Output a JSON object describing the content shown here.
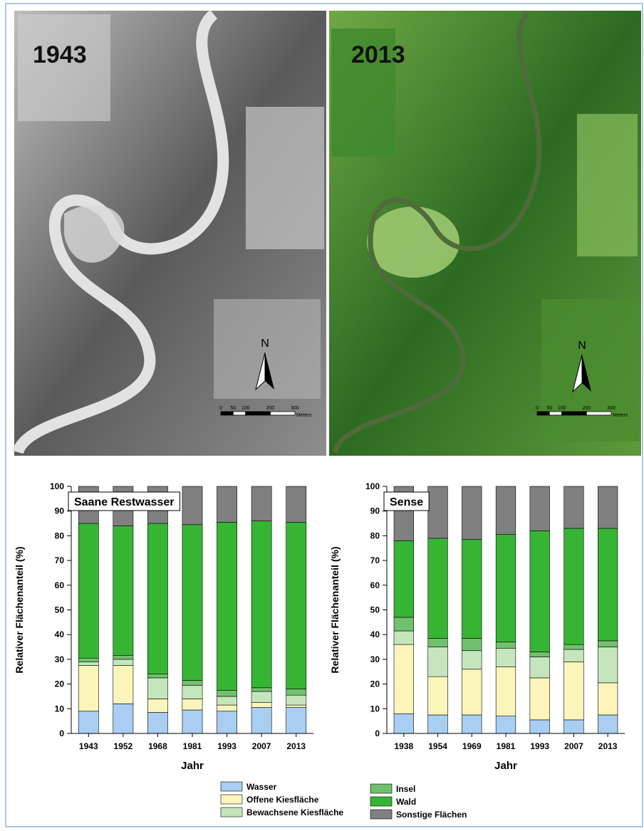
{
  "photos": [
    {
      "label": "1943",
      "north": "N",
      "scale_labels": [
        "0",
        "50",
        "100",
        "200",
        "300"
      ],
      "scale_unit": "Meters"
    },
    {
      "label": "2013",
      "north": "N",
      "scale_labels": [
        "0",
        "50",
        "100",
        "200",
        "300"
      ],
      "scale_unit": "Meters"
    }
  ],
  "chart_data": [
    {
      "type": "stacked_bar",
      "title": "Saane Restwasser",
      "x_label": "Jahr",
      "y_label": "Relativer Flächenanteil (%)",
      "categories": [
        "1943",
        "1952",
        "1968",
        "1981",
        "1993",
        "2007",
        "2013"
      ],
      "ylim": [
        0,
        100
      ],
      "yticks": [
        0,
        10,
        20,
        30,
        40,
        50,
        60,
        70,
        80,
        90,
        100
      ],
      "series": [
        {
          "name": "Wasser",
          "color": "#a9cef1",
          "values": [
            9,
            12,
            8.5,
            9.5,
            9,
            10.5,
            10.5
          ]
        },
        {
          "name": "Offene Kiesfläche",
          "color": "#fbf5ba",
          "values": [
            18.5,
            15.5,
            5.5,
            4.5,
            2.5,
            2,
            1
          ]
        },
        {
          "name": "Bewachsene Kiesfläche",
          "color": "#c5e6bd",
          "values": [
            1.5,
            2.5,
            8.5,
            5.5,
            3.5,
            4.5,
            4
          ]
        },
        {
          "name": "Insel",
          "color": "#71c06d",
          "values": [
            1.5,
            1.5,
            1.5,
            2,
            2.5,
            1.5,
            2.5
          ]
        },
        {
          "name": "Wald",
          "color": "#36b534",
          "values": [
            54.5,
            52.5,
            61,
            63,
            68,
            67.5,
            67.5
          ]
        },
        {
          "name": "Sonstige Flächen",
          "color": "#808080",
          "values": [
            15,
            16,
            15,
            15.5,
            14.5,
            14,
            14.5
          ]
        }
      ]
    },
    {
      "type": "stacked_bar",
      "title": "Sense",
      "x_label": "Jahr",
      "y_label": "Relativer Flächenanteil (%)",
      "categories": [
        "1938",
        "1954",
        "1969",
        "1981",
        "1993",
        "2007",
        "2013"
      ],
      "ylim": [
        0,
        100
      ],
      "yticks": [
        0,
        10,
        20,
        30,
        40,
        50,
        60,
        70,
        80,
        90,
        100
      ],
      "series": [
        {
          "name": "Wasser",
          "color": "#a9cef1",
          "values": [
            8,
            7.5,
            7.5,
            7,
            5.5,
            5.5,
            7.5
          ]
        },
        {
          "name": "Offene Kiesfläche",
          "color": "#fbf5ba",
          "values": [
            28,
            15.5,
            18.5,
            20,
            17,
            23.5,
            13
          ]
        },
        {
          "name": "Bewachsene Kiesfläche",
          "color": "#c5e6bd",
          "values": [
            5.5,
            12,
            7.5,
            7.5,
            8.5,
            5,
            14.5
          ]
        },
        {
          "name": "Insel",
          "color": "#71c06d",
          "values": [
            5.5,
            3.5,
            5,
            2.5,
            2,
            2,
            2.5
          ]
        },
        {
          "name": "Wald",
          "color": "#36b534",
          "values": [
            31,
            40.5,
            40,
            43.5,
            49,
            47,
            45.5
          ]
        },
        {
          "name": "Sonstige Flächen",
          "color": "#808080",
          "values": [
            22,
            21,
            21.5,
            19.5,
            18,
            17,
            17
          ]
        }
      ]
    }
  ]
}
